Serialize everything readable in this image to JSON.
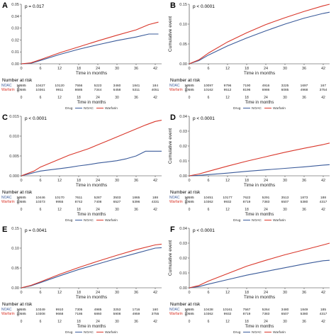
{
  "figure": {
    "risk_title": "Number at risk",
    "risk_strata": [
      "NOAC",
      "Warfarin"
    ],
    "risk_axis_label": "Drug",
    "legend_title": "Drug",
    "legend_labels": [
      "NOAC",
      "Warfarin"
    ],
    "colors": {
      "NOAC": "#3b5b9a",
      "Warfarin": "#d9372b"
    }
  },
  "chart_data": [
    {
      "type": "line",
      "panel": "A",
      "p_value": "p = 0.017",
      "ylabel": "",
      "xlabel": "Time in months",
      "xticks": [
        0,
        6,
        12,
        18,
        24,
        30,
        36,
        42
      ],
      "xlim": [
        0,
        44
      ],
      "yticks": [
        "0.00",
        "0.01",
        "0.02",
        "0.03",
        "0.04",
        "0.05"
      ],
      "ylim": [
        0,
        0.05
      ],
      "series": [
        {
          "name": "NOAC",
          "x": [
            0,
            3,
            6,
            12,
            18,
            24,
            30,
            36,
            40,
            43
          ],
          "y": [
            0,
            0.0004,
            0.0028,
            0.0078,
            0.0122,
            0.016,
            0.0195,
            0.0225,
            0.025,
            0.025
          ]
        },
        {
          "name": "Warfarin",
          "x": [
            0,
            3,
            6,
            12,
            18,
            24,
            30,
            36,
            40,
            43
          ],
          "y": [
            0,
            0.0008,
            0.0035,
            0.0092,
            0.0142,
            0.0192,
            0.024,
            0.0285,
            0.033,
            0.035
          ]
        }
      ],
      "risk_x": [
        0,
        6,
        12,
        18,
        24,
        30,
        36,
        42
      ],
      "risk_noac": [
        "10585",
        "10427",
        "10120",
        "7556",
        "5223",
        "3460",
        "1841",
        "184"
      ],
      "risk_warfarin": [
        "10585",
        "10361",
        "9911",
        "8685",
        "7344",
        "6458",
        "5311",
        "4051"
      ]
    },
    {
      "type": "line",
      "panel": "B",
      "p_value": "p < 0.0001",
      "ylabel": "Cumulative event",
      "xlabel": "Time in months",
      "xticks": [
        0,
        6,
        12,
        18,
        24,
        30,
        36,
        42
      ],
      "xlim": [
        0,
        44
      ],
      "yticks": [
        "0.00",
        "0.05",
        "0.10",
        "0.15"
      ],
      "ylim": [
        0,
        0.15
      ],
      "series": [
        {
          "name": "NOAC",
          "x": [
            0,
            3,
            6,
            12,
            18,
            24,
            30,
            36,
            42,
            44
          ],
          "y": [
            0,
            0.008,
            0.022,
            0.045,
            0.065,
            0.083,
            0.1,
            0.115,
            0.127,
            0.13
          ]
        },
        {
          "name": "Warfarin",
          "x": [
            0,
            3,
            6,
            12,
            18,
            24,
            30,
            36,
            42,
            44
          ],
          "y": [
            0,
            0.01,
            0.027,
            0.055,
            0.078,
            0.099,
            0.116,
            0.132,
            0.146,
            0.15
          ]
        }
      ],
      "risk_x": [
        0,
        6,
        12,
        18,
        24,
        30,
        36,
        42
      ],
      "risk_noac": [
        "10585",
        "10097",
        "9796",
        "7190",
        "4916",
        "3225",
        "1697",
        "167"
      ],
      "risk_warfarin": [
        "10585",
        "10162",
        "9512",
        "8196",
        "6986",
        "6085",
        "4968",
        "3754"
      ]
    },
    {
      "type": "line",
      "panel": "C",
      "p_value": "p < 0.0001",
      "ylabel": "",
      "xlabel": "Time in months",
      "xticks": [
        0,
        6,
        12,
        18,
        24,
        30,
        36,
        42
      ],
      "xlim": [
        0,
        44
      ],
      "yticks": [
        "0.000",
        "0.005",
        "0.010",
        "0.015"
      ],
      "ylim": [
        0,
        0.015
      ],
      "series": [
        {
          "name": "NOAC",
          "x": [
            0,
            2,
            4,
            6,
            9,
            12,
            15,
            18,
            21,
            24,
            27,
            30,
            33,
            36,
            39,
            42,
            44
          ],
          "y": [
            0,
            0.0004,
            0.0008,
            0.0012,
            0.0015,
            0.0018,
            0.0021,
            0.0025,
            0.0028,
            0.0032,
            0.0035,
            0.0038,
            0.0043,
            0.005,
            0.0062,
            0.0062,
            0.0062
          ]
        },
        {
          "name": "Warfarin",
          "x": [
            0,
            2,
            4,
            6,
            9,
            12,
            15,
            18,
            21,
            24,
            27,
            30,
            33,
            36,
            39,
            42,
            44
          ],
          "y": [
            0,
            0.0006,
            0.0012,
            0.0022,
            0.0032,
            0.0042,
            0.0052,
            0.006,
            0.0068,
            0.0078,
            0.0088,
            0.0098,
            0.0108,
            0.0118,
            0.0128,
            0.0137,
            0.014
          ]
        }
      ],
      "risk_x": [
        0,
        6,
        12,
        18,
        24,
        30,
        36,
        42
      ],
      "risk_noac": [
        "10585",
        "10446",
        "10170",
        "7611",
        "5287",
        "3503",
        "1865",
        "188"
      ],
      "risk_warfarin": [
        "10585",
        "10373",
        "9955",
        "8742",
        "7408",
        "6527",
        "5396",
        "4331"
      ]
    },
    {
      "type": "line",
      "panel": "D",
      "p_value": "p < 0.0001",
      "ylabel": "Cumulative event",
      "xlabel": "Time in months",
      "xticks": [
        0,
        6,
        12,
        18,
        24,
        30,
        36,
        42
      ],
      "xlim": [
        0,
        44
      ],
      "yticks": [
        "0.00",
        "0.01",
        "0.02",
        "0.03",
        "0.04"
      ],
      "ylim": [
        0,
        0.04
      ],
      "series": [
        {
          "name": "NOAC",
          "x": [
            0,
            3,
            6,
            12,
            18,
            24,
            30,
            36,
            42,
            44
          ],
          "y": [
            0,
            0.0003,
            0.0008,
            0.0018,
            0.003,
            0.004,
            0.005,
            0.006,
            0.0072,
            0.0075
          ]
        },
        {
          "name": "Warfarin",
          "x": [
            0,
            3,
            6,
            12,
            18,
            24,
            30,
            36,
            42,
            44
          ],
          "y": [
            0,
            0.0012,
            0.003,
            0.0065,
            0.0098,
            0.0128,
            0.0158,
            0.0185,
            0.021,
            0.022
          ]
        }
      ],
      "risk_x": [
        0,
        6,
        12,
        18,
        24,
        30,
        36,
        42
      ],
      "risk_noac": [
        "10585",
        "10451",
        "10177",
        "7622",
        "5291",
        "3513",
        "1873",
        "188"
      ],
      "risk_warfarin": [
        "10585",
        "10362",
        "9932",
        "8719",
        "7383",
        "6507",
        "5380",
        "4317"
      ]
    },
    {
      "type": "line",
      "panel": "E",
      "p_value": "p = 0.0041",
      "ylabel": "",
      "xlabel": "Time in months",
      "xticks": [
        0,
        6,
        12,
        18,
        24,
        30,
        36,
        42
      ],
      "xlim": [
        0,
        44
      ],
      "yticks": [
        "0.00",
        "0.05",
        "0.10",
        "0.15"
      ],
      "ylim": [
        0,
        0.15
      ],
      "series": [
        {
          "name": "NOAC",
          "x": [
            0,
            3,
            6,
            12,
            18,
            24,
            30,
            36,
            42,
            44
          ],
          "y": [
            0,
            0.005,
            0.013,
            0.03,
            0.046,
            0.06,
            0.074,
            0.087,
            0.1,
            0.101
          ]
        },
        {
          "name": "Warfarin",
          "x": [
            0,
            3,
            6,
            12,
            18,
            24,
            30,
            36,
            42,
            44
          ],
          "y": [
            0,
            0.006,
            0.015,
            0.034,
            0.051,
            0.067,
            0.082,
            0.096,
            0.108,
            0.11
          ]
        }
      ],
      "risk_x": [
        0,
        6,
        12,
        18,
        24,
        30,
        36,
        42
      ],
      "risk_noac": [
        "10585",
        "10349",
        "9910",
        "7305",
        "4985",
        "3253",
        "1716",
        "160"
      ],
      "risk_warfarin": [
        "10585",
        "10308",
        "9668",
        "7186",
        "6860",
        "5908",
        "4959",
        "3755"
      ]
    },
    {
      "type": "line",
      "panel": "F",
      "p_value": "p < 0.0001",
      "ylabel": "Cumulative event",
      "xlabel": "Time in months",
      "xticks": [
        0,
        6,
        12,
        18,
        24,
        30,
        36,
        42
      ],
      "xlim": [
        0,
        44
      ],
      "yticks": [
        "0.00",
        "0.01",
        "0.02",
        "0.03",
        "0.04"
      ],
      "ylim": [
        0,
        0.04
      ],
      "series": [
        {
          "name": "NOAC",
          "x": [
            0,
            3,
            6,
            12,
            18,
            24,
            30,
            36,
            42,
            44
          ],
          "y": [
            0,
            0.0008,
            0.0025,
            0.0055,
            0.0085,
            0.011,
            0.0135,
            0.016,
            0.0182,
            0.0185
          ]
        },
        {
          "name": "Warfarin",
          "x": [
            0,
            3,
            6,
            12,
            18,
            24,
            30,
            36,
            42,
            44
          ],
          "y": [
            0,
            0.0015,
            0.0045,
            0.0095,
            0.0145,
            0.0185,
            0.0222,
            0.0255,
            0.0288,
            0.03
          ]
        }
      ],
      "risk_x": [
        0,
        6,
        12,
        18,
        24,
        30,
        36,
        42
      ],
      "risk_noac": [
        "10585",
        "10438",
        "10161",
        "7567",
        "5264",
        "3480",
        "1849",
        "185"
      ],
      "risk_warfarin": [
        "10585",
        "10362",
        "9932",
        "8719",
        "7383",
        "6507",
        "5380",
        "4317"
      ]
    }
  ]
}
